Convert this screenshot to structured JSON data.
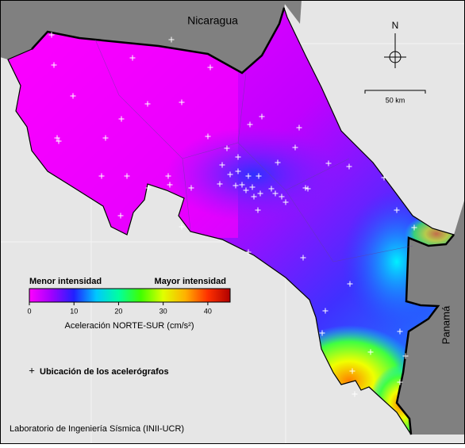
{
  "map": {
    "labels": {
      "country_north": "Nicaragua",
      "country_east": "Panamá",
      "north": "N",
      "scale": "50 km"
    },
    "colorbar": {
      "low_label": "Menor intensidad",
      "high_label": "Mayor intensidad",
      "range": [
        0,
        45
      ],
      "ticks": [
        0,
        10,
        20,
        30,
        40
      ],
      "colors": [
        "#ff00ff",
        "#a000ff",
        "#2020ff",
        "#00c8ff",
        "#00ffa0",
        "#40ff00",
        "#e0ff00",
        "#ffb000",
        "#ff3000",
        "#b00000"
      ],
      "title": "Aceleración NORTE-SUR (cm/s²)"
    },
    "legend": "Ubicación de los acelerógrafos",
    "footer": "Laboratorio de Ingeniería Sísmica (INII-UCR)"
  }
}
